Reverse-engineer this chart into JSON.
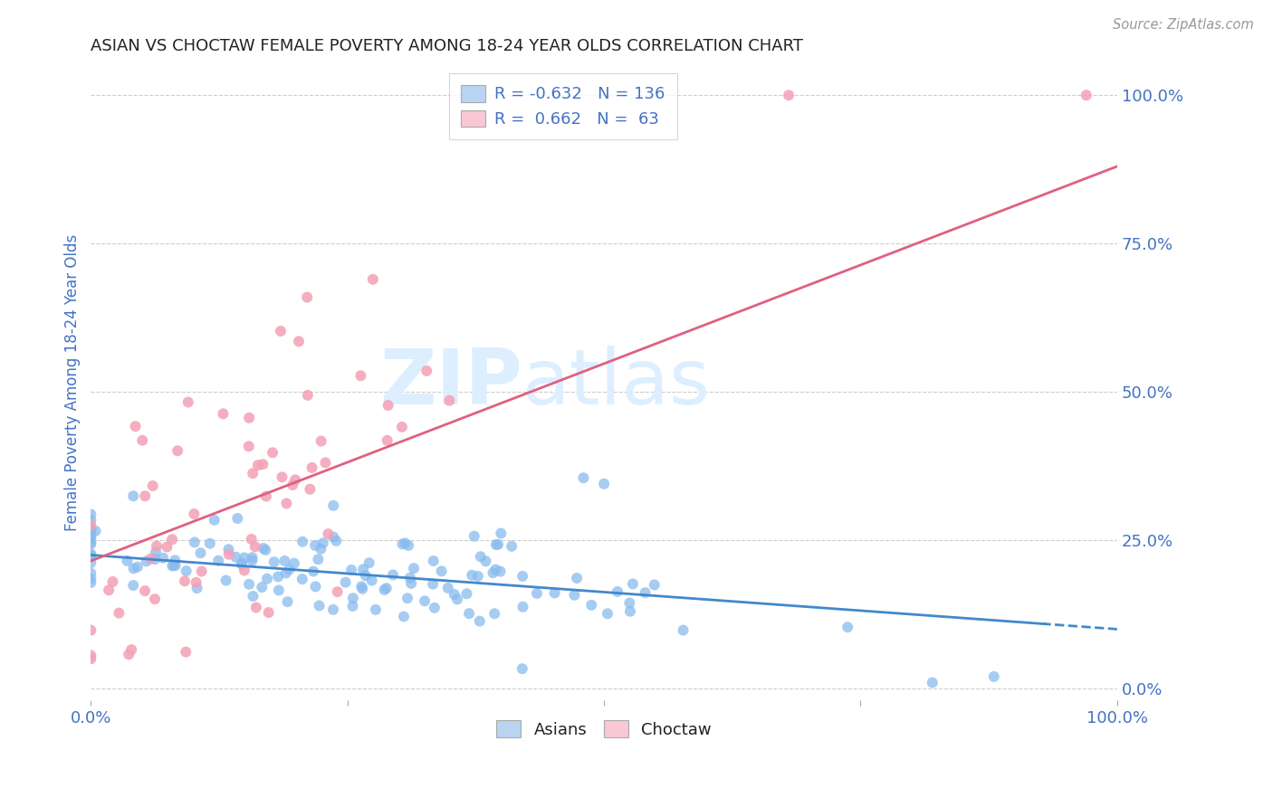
{
  "title": "ASIAN VS CHOCTAW FEMALE POVERTY AMONG 18-24 YEAR OLDS CORRELATION CHART",
  "source": "Source: ZipAtlas.com",
  "ylabel": "Female Poverty Among 18-24 Year Olds",
  "ytick_labels": [
    "100.0%",
    "75.0%",
    "50.0%",
    "25.0%",
    "0.0%"
  ],
  "ytick_values": [
    1.0,
    0.75,
    0.5,
    0.25,
    0.0
  ],
  "xlim": [
    0.0,
    1.0
  ],
  "ylim": [
    -0.02,
    1.05
  ],
  "asian_color": "#88bbee",
  "choctaw_color": "#f4a0b5",
  "asian_line_color": "#4488cc",
  "choctaw_line_color": "#e06080",
  "legend_box_color": "#b8d4f0",
  "legend_box_color2": "#f9c8d4",
  "watermark": "ZIPatlas",
  "watermark_color": "#ddeeff",
  "R_asian": -0.632,
  "N_asian": 136,
  "R_choctaw": 0.662,
  "N_choctaw": 63,
  "grid_color": "#cccccc",
  "title_color": "#222222",
  "axis_label_color": "#4472c4",
  "tick_color": "#4472c4",
  "background_color": "#ffffff",
  "choctaw_line_x0": 0.0,
  "choctaw_line_y0": 0.215,
  "choctaw_line_x1": 1.0,
  "choctaw_line_y1": 0.88,
  "asian_line_x0": 0.0,
  "asian_line_y0": 0.225,
  "asian_line_x1": 1.0,
  "asian_line_y1": 0.1
}
